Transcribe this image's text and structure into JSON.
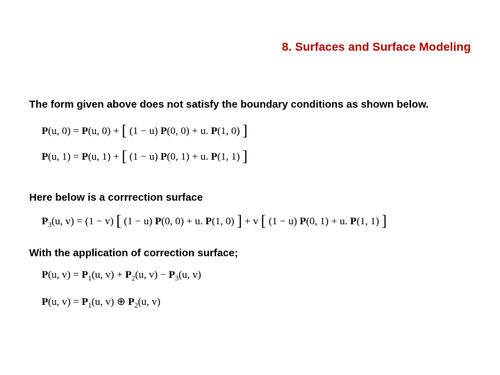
{
  "colors": {
    "title": "#b30000",
    "body": "#000000",
    "background": "#ffffff"
  },
  "typography": {
    "title_fontsize": 17,
    "title_bold": true,
    "body_fontsize": 15,
    "body_bold": true,
    "eq_fontfamily": "Times New Roman",
    "eq_fontsize": 15
  },
  "title": "8. Surfaces and Surface Modeling",
  "para1": "The form given above does not satisfy the boundary conditions as shown below.",
  "para2": "Here below is a corrrection surface",
  "para3": "With the application of correction surface;",
  "eq1": {
    "lhs_P": "P",
    "lhs_args": "(u, 0)",
    "rhs_P1": "P",
    "rhs_P1_args": "(u, 0)",
    "plus": " + ",
    "term_a_pre": "(1 − u)",
    "term_a_P": "P",
    "term_a_args": "(0, 0)",
    "plus2": " + u.",
    "term_b_P": "P",
    "term_b_args": "(1, 0)"
  },
  "eq2": {
    "lhs_P": "P",
    "lhs_args": "(u, 1)",
    "rhs_P1": "P",
    "rhs_P1_args": "(u, 1)",
    "plus": " + ",
    "term_a_pre": "(1 − u)",
    "term_a_P": "P",
    "term_a_args": "(0, 1)",
    "plus2": " + u.",
    "term_b_P": "P",
    "term_b_args": "(1, 1)"
  },
  "eq3": {
    "lhs_P": "P",
    "lhs_sub": "3",
    "lhs_args": "(u, v)",
    "coef1": "(1 − v)",
    "br1_a_pre": "(1 − u)",
    "br1_a_P": "P",
    "br1_a_args": "(0, 0)",
    "br1_plus": " + u.",
    "br1_b_P": "P",
    "br1_b_args": "(1, 0)",
    "plus": " + v",
    "br2_a_pre": "(1 − u)",
    "br2_a_P": "P",
    "br2_a_args": "(0, 1)",
    "br2_plus": " + u.",
    "br2_b_P": "P",
    "br2_b_args": "(1, 1)"
  },
  "eq4": {
    "lhs_P": "P",
    "lhs_args": "(u, v)",
    "t1_P": "P",
    "t1_sub": "1",
    "t1_args": "(u, v)",
    "plus1": " + ",
    "t2_P": "P",
    "t2_sub": "2",
    "t2_args": "(u, v)",
    "minus": " − ",
    "t3_P": "P",
    "t3_sub": "3",
    "t3_args": "(u, v)"
  },
  "eq5": {
    "lhs_P": "P",
    "lhs_args": "(u, v)",
    "t1_P": "P",
    "t1_sub": "1",
    "t1_args": "(u, v)",
    "op": " ⊕ ",
    "t2_P": "P",
    "t2_sub": "2",
    "t2_args": "(u, v)"
  }
}
